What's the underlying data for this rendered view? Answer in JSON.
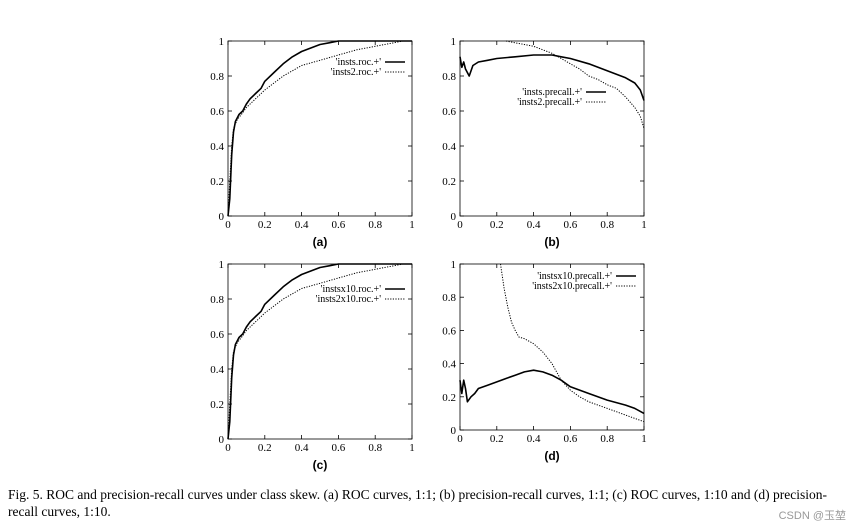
{
  "figure_caption": "Fig. 5.  ROC and precision-recall curves under class skew. (a) ROC curves, 1:1; (b) precision-recall curves, 1:1; (c) ROC curves, 1:10 and (d) precision-recall curves, 1:10.",
  "watermark": "CSDN @玉堃",
  "colors": {
    "line": "#000000",
    "background": "#ffffff"
  },
  "chart_data": [
    {
      "id": "a",
      "type": "line",
      "label": "(a)",
      "title": "",
      "xlabel": "",
      "ylabel": "",
      "xlim": [
        0,
        1
      ],
      "ylim": [
        0,
        1
      ],
      "xticks": [
        0,
        0.2,
        0.4,
        0.6,
        0.8,
        1
      ],
      "xtick_labels": [
        "0",
        "0.2",
        "0.4",
        "0.6",
        "0.8",
        "1"
      ],
      "yticks": [
        0,
        0.2,
        0.4,
        0.6,
        0.8,
        1
      ],
      "ytick_labels": [
        "0",
        "0.2",
        "0.4",
        "0.6",
        "0.8",
        "1"
      ],
      "legend_position": "top-right",
      "series": [
        {
          "name": "'insts.roc.+'",
          "style": "solid",
          "x": [
            0,
            0.01,
            0.02,
            0.03,
            0.04,
            0.06,
            0.08,
            0.1,
            0.12,
            0.15,
            0.18,
            0.2,
            0.25,
            0.3,
            0.35,
            0.4,
            0.45,
            0.5,
            0.55,
            0.6,
            1.0
          ],
          "y": [
            0,
            0.1,
            0.35,
            0.48,
            0.54,
            0.58,
            0.6,
            0.64,
            0.67,
            0.7,
            0.73,
            0.77,
            0.82,
            0.87,
            0.91,
            0.94,
            0.96,
            0.98,
            0.99,
            1.0,
            1.0
          ]
        },
        {
          "name": "'insts2.roc.+'",
          "style": "dotted",
          "x": [
            0,
            0.01,
            0.02,
            0.03,
            0.05,
            0.08,
            0.1,
            0.15,
            0.2,
            0.25,
            0.3,
            0.35,
            0.4,
            0.5,
            0.6,
            0.7,
            0.8,
            0.9,
            0.95,
            1.0
          ],
          "y": [
            0,
            0.2,
            0.4,
            0.5,
            0.55,
            0.59,
            0.62,
            0.67,
            0.72,
            0.76,
            0.8,
            0.83,
            0.86,
            0.89,
            0.92,
            0.95,
            0.97,
            0.99,
            1.0,
            1.0
          ]
        }
      ]
    },
    {
      "id": "b",
      "type": "line",
      "label": "(b)",
      "title": "",
      "xlabel": "",
      "ylabel": "",
      "xlim": [
        0,
        1
      ],
      "ylim": [
        0,
        1
      ],
      "xticks": [
        0,
        0.2,
        0.4,
        0.6,
        0.8,
        1
      ],
      "xtick_labels": [
        "0",
        "0.2",
        "0.4",
        "0.6",
        "0.8",
        "1"
      ],
      "yticks": [
        0,
        0.2,
        0.4,
        0.6,
        0.8,
        1
      ],
      "ytick_labels": [
        "0",
        "0.2",
        "0.4",
        "0.6",
        "0.8",
        "1"
      ],
      "legend_position": "center-right",
      "series": [
        {
          "name": "'insts.precall.+'",
          "style": "solid",
          "x": [
            0,
            0.01,
            0.02,
            0.03,
            0.05,
            0.07,
            0.1,
            0.15,
            0.2,
            0.3,
            0.4,
            0.45,
            0.5,
            0.55,
            0.6,
            0.7,
            0.8,
            0.9,
            0.95,
            0.98,
            1.0
          ],
          "y": [
            0.91,
            0.85,
            0.88,
            0.84,
            0.8,
            0.86,
            0.88,
            0.89,
            0.9,
            0.91,
            0.92,
            0.92,
            0.92,
            0.91,
            0.9,
            0.87,
            0.83,
            0.79,
            0.76,
            0.72,
            0.66
          ]
        },
        {
          "name": "'insts2.precall.+'",
          "style": "dotted",
          "x": [
            0.25,
            0.3,
            0.35,
            0.4,
            0.45,
            0.5,
            0.55,
            0.6,
            0.65,
            0.7,
            0.75,
            0.8,
            0.85,
            0.9,
            0.95,
            0.98,
            1.0
          ],
          "y": [
            1.0,
            0.99,
            0.98,
            0.97,
            0.95,
            0.93,
            0.9,
            0.87,
            0.84,
            0.8,
            0.78,
            0.75,
            0.73,
            0.68,
            0.62,
            0.57,
            0.5
          ]
        }
      ]
    },
    {
      "id": "c",
      "type": "line",
      "label": "(c)",
      "title": "",
      "xlabel": "",
      "ylabel": "",
      "xlim": [
        0,
        1
      ],
      "ylim": [
        0,
        1
      ],
      "xticks": [
        0,
        0.2,
        0.4,
        0.6,
        0.8,
        1
      ],
      "xtick_labels": [
        "0",
        "0.2",
        "0.4",
        "0.6",
        "0.8",
        "1"
      ],
      "yticks": [
        0,
        0.2,
        0.4,
        0.6,
        0.8,
        1
      ],
      "ytick_labels": [
        "0",
        "0.2",
        "0.4",
        "0.6",
        "0.8",
        "1"
      ],
      "legend_position": "top-right",
      "series": [
        {
          "name": "'instsx10.roc.+'",
          "style": "solid",
          "x": [
            0,
            0.01,
            0.02,
            0.03,
            0.04,
            0.06,
            0.08,
            0.1,
            0.12,
            0.15,
            0.18,
            0.2,
            0.25,
            0.3,
            0.35,
            0.4,
            0.45,
            0.5,
            0.55,
            0.6,
            1.0
          ],
          "y": [
            0,
            0.1,
            0.35,
            0.48,
            0.54,
            0.58,
            0.6,
            0.64,
            0.67,
            0.7,
            0.73,
            0.77,
            0.82,
            0.87,
            0.91,
            0.94,
            0.96,
            0.98,
            0.99,
            1.0,
            1.0
          ]
        },
        {
          "name": "'insts2x10.roc.+'",
          "style": "dotted",
          "x": [
            0,
            0.01,
            0.02,
            0.03,
            0.05,
            0.08,
            0.1,
            0.15,
            0.2,
            0.25,
            0.3,
            0.35,
            0.4,
            0.5,
            0.6,
            0.7,
            0.8,
            0.9,
            0.95,
            1.0
          ],
          "y": [
            0,
            0.2,
            0.4,
            0.5,
            0.55,
            0.59,
            0.62,
            0.67,
            0.72,
            0.76,
            0.8,
            0.83,
            0.86,
            0.89,
            0.92,
            0.95,
            0.97,
            0.99,
            1.0,
            1.0
          ]
        }
      ]
    },
    {
      "id": "d",
      "type": "line",
      "label": "(d)",
      "title": "",
      "xlabel": "",
      "ylabel": "",
      "xlim": [
        0,
        1
      ],
      "ylim": [
        0,
        1
      ],
      "xticks": [
        0,
        0.2,
        0.4,
        0.6,
        0.8,
        1
      ],
      "xtick_labels": [
        "0",
        "0.2",
        "0.4",
        "0.6",
        "0.8",
        "1"
      ],
      "yticks": [
        0,
        0.2,
        0.4,
        0.6,
        0.8,
        1
      ],
      "ytick_labels": [
        "0",
        "0.2",
        "0.4",
        "0.6",
        "0.8",
        "1"
      ],
      "legend_position": "top-right",
      "series": [
        {
          "name": "'instsx10.precall.+'",
          "style": "solid",
          "x": [
            0,
            0.01,
            0.02,
            0.03,
            0.04,
            0.06,
            0.08,
            0.1,
            0.15,
            0.2,
            0.25,
            0.3,
            0.35,
            0.4,
            0.45,
            0.5,
            0.55,
            0.6,
            0.7,
            0.8,
            0.9,
            0.95,
            1.0
          ],
          "y": [
            0.3,
            0.22,
            0.3,
            0.25,
            0.17,
            0.2,
            0.22,
            0.25,
            0.27,
            0.29,
            0.31,
            0.33,
            0.35,
            0.36,
            0.35,
            0.33,
            0.3,
            0.26,
            0.22,
            0.18,
            0.15,
            0.13,
            0.1
          ]
        },
        {
          "name": "'insts2x10.precall.+'",
          "style": "dotted",
          "x": [
            0.22,
            0.24,
            0.26,
            0.28,
            0.3,
            0.32,
            0.35,
            0.4,
            0.45,
            0.5,
            0.55,
            0.6,
            0.65,
            0.7,
            0.75,
            0.8,
            0.85,
            0.9,
            0.95,
            1.0
          ],
          "y": [
            1.0,
            0.85,
            0.74,
            0.65,
            0.6,
            0.56,
            0.55,
            0.52,
            0.47,
            0.4,
            0.3,
            0.24,
            0.2,
            0.17,
            0.15,
            0.13,
            0.11,
            0.09,
            0.07,
            0.05
          ]
        }
      ]
    }
  ]
}
